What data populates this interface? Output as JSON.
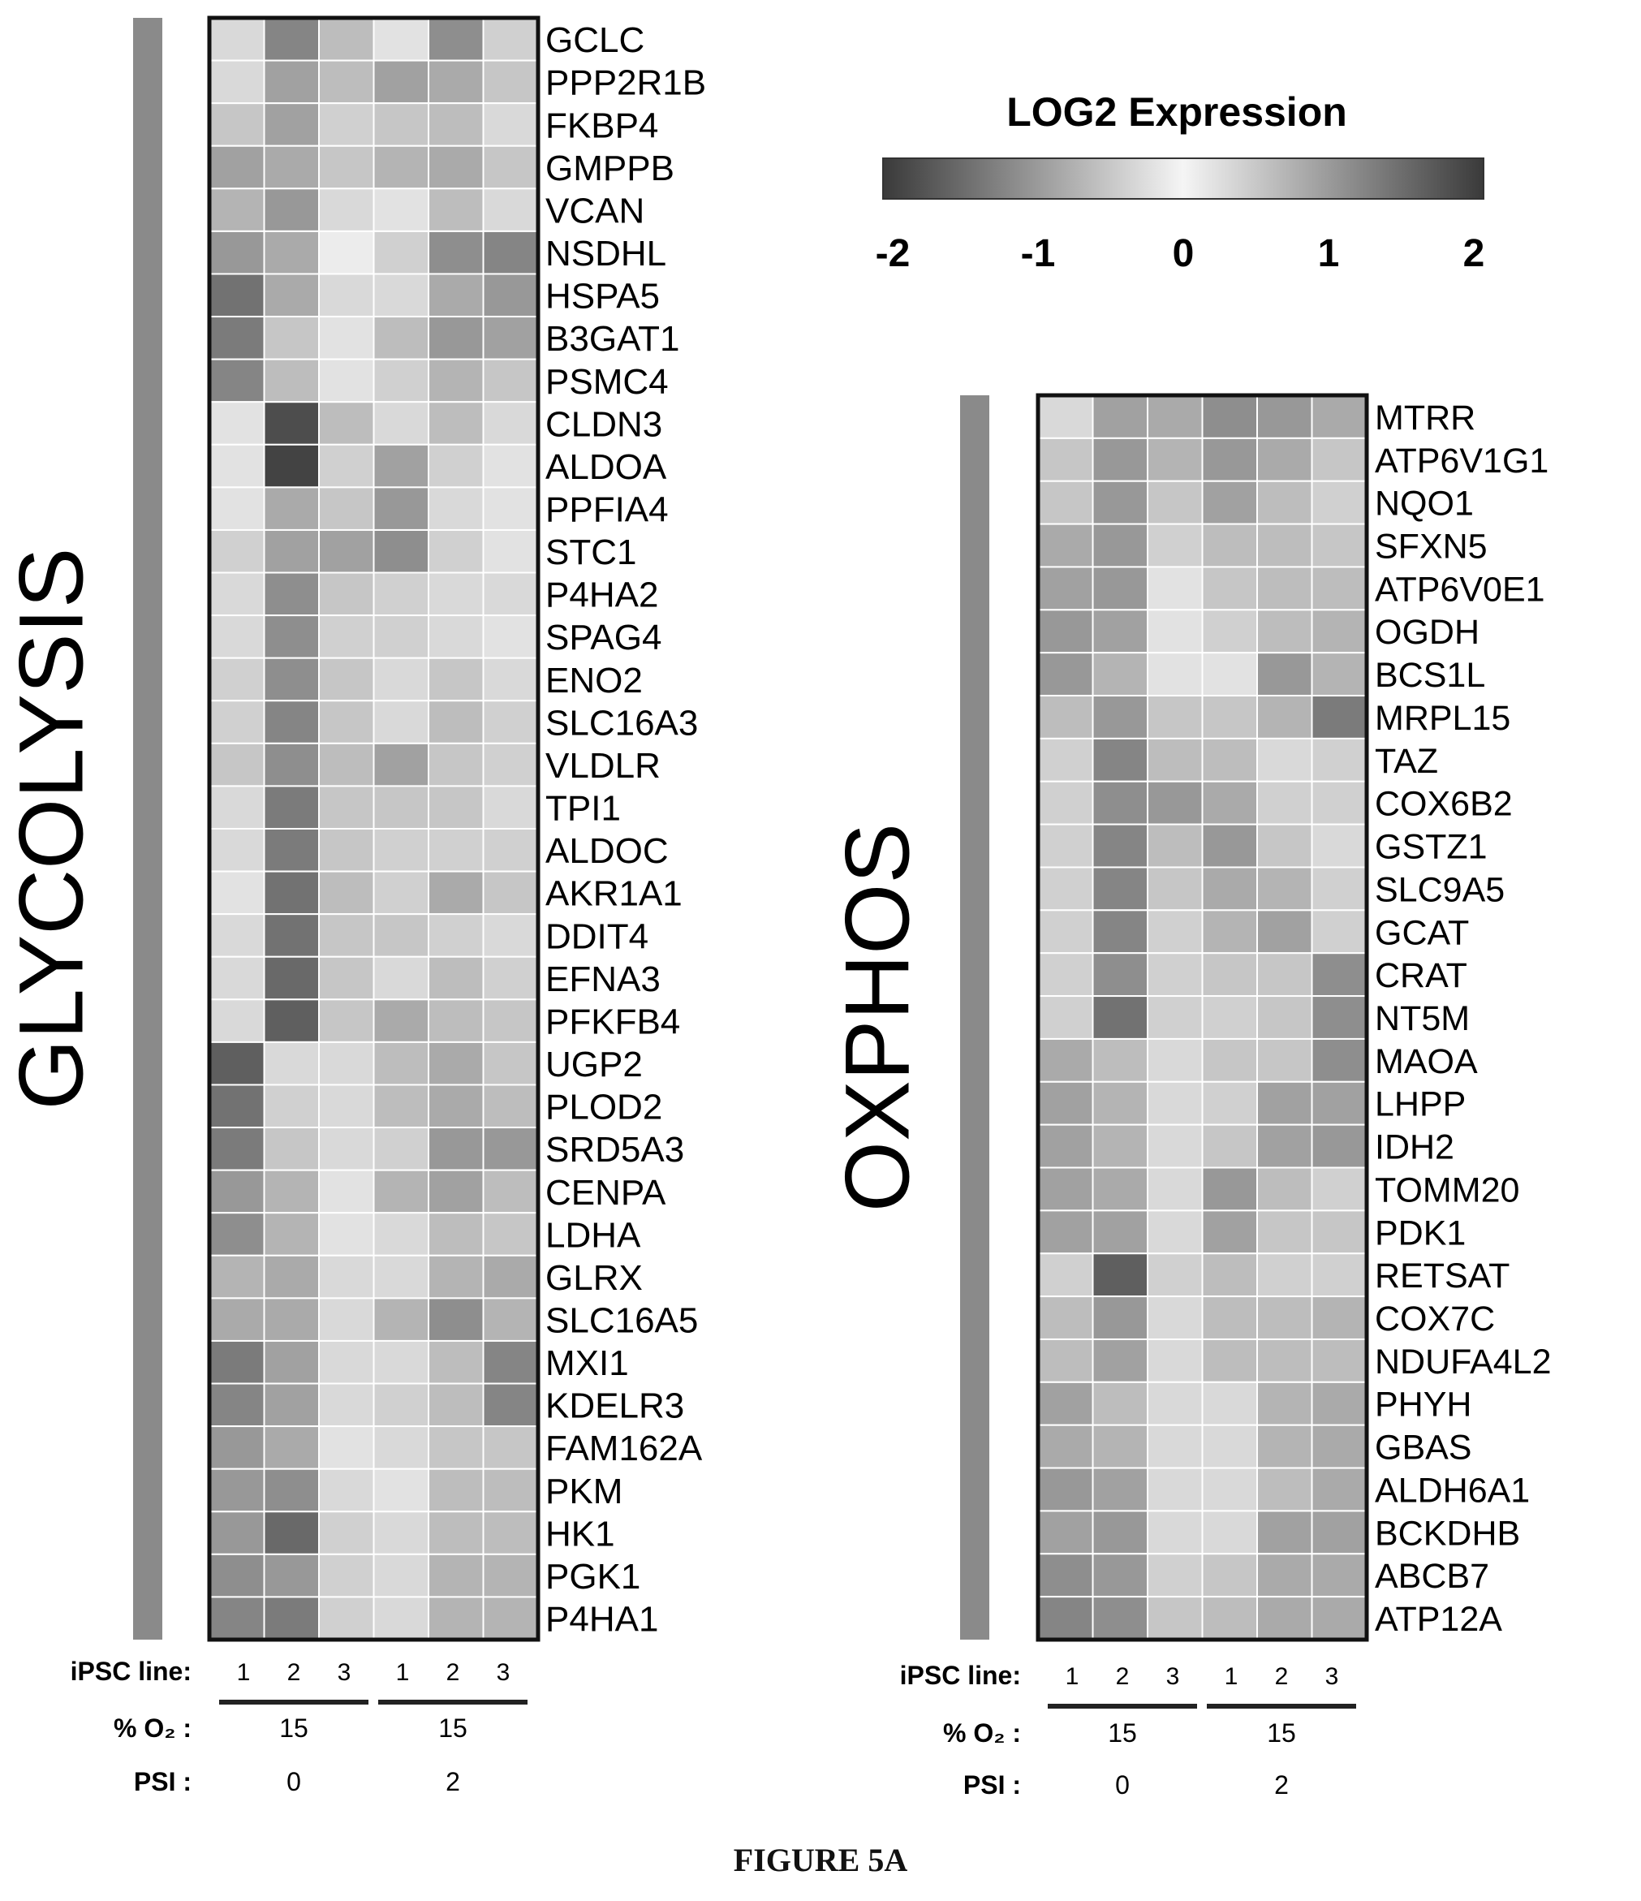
{
  "caption": "FIGURE 5A",
  "colors": {
    "low": "#3a3a3a",
    "mid": "#f5f5f5",
    "high": "#3a3a3a",
    "frame": "#111111",
    "side_bar": "#8a8a8a"
  },
  "legend": {
    "title": "LOG2 Expression",
    "min": -2,
    "max": 2,
    "ticks": [
      "-2",
      "-1",
      "0",
      "1",
      "2"
    ]
  },
  "footer_labels": {
    "ipsc_line": "iPSC line:",
    "o2": "% O₂ :",
    "psi": "PSI :"
  },
  "chart_data": [
    {
      "type": "heatmap",
      "title": "GLYCOLYSIS",
      "columns": [
        "1",
        "2",
        "3",
        "1",
        "2",
        "3"
      ],
      "groups": [
        {
          "o2": "15",
          "psi": "0"
        },
        {
          "o2": "15",
          "psi": "2"
        }
      ],
      "rows": [
        "GCLC",
        "PPP2R1B",
        "FKBP4",
        "GMPPB",
        "VCAN",
        "NSDHL",
        "HSPA5",
        "B3GAT1",
        "PSMC4",
        "CLDN3",
        "ALDOA",
        "PPFIA4",
        "STC1",
        "P4HA2",
        "SPAG4",
        "ENO2",
        "SLC16A3",
        "VLDLR",
        "TPI1",
        "ALDOC",
        "AKR1A1",
        "DDIT4",
        "EFNA3",
        "PFKFB4",
        "UGP2",
        "PLOD2",
        "SRD5A3",
        "CENPA",
        "LDHA",
        "GLRX",
        "SLC16A5",
        "MXI1",
        "KDELR3",
        "FAM162A",
        "PKM",
        "HK1",
        "PGK1",
        "P4HA1"
      ],
      "values": [
        [
          -0.3,
          1.2,
          0.6,
          0.2,
          1.1,
          0.4
        ],
        [
          0.3,
          0.9,
          0.6,
          0.9,
          0.8,
          0.5
        ],
        [
          0.5,
          0.9,
          0.4,
          0.5,
          0.6,
          0.3
        ],
        [
          0.9,
          0.8,
          0.5,
          0.7,
          0.8,
          0.5
        ],
        [
          0.7,
          1.0,
          0.3,
          -0.2,
          0.6,
          0.3
        ],
        [
          1.0,
          0.8,
          0.1,
          -0.4,
          1.1,
          1.2
        ],
        [
          1.4,
          0.8,
          0.3,
          -0.3,
          0.8,
          1.0
        ],
        [
          1.3,
          0.5,
          0.2,
          0.6,
          1.0,
          0.9
        ],
        [
          1.2,
          0.6,
          0.2,
          0.4,
          0.7,
          0.5
        ],
        [
          0.2,
          1.8,
          0.6,
          0.3,
          0.6,
          0.3
        ],
        [
          0.2,
          1.9,
          0.4,
          0.9,
          0.4,
          0.2
        ],
        [
          0.2,
          0.8,
          0.5,
          1.0,
          0.3,
          0.2
        ],
        [
          0.4,
          0.9,
          0.9,
          1.1,
          0.4,
          0.2
        ],
        [
          0.3,
          1.1,
          0.5,
          0.4,
          0.3,
          0.3
        ],
        [
          0.3,
          1.1,
          0.4,
          0.4,
          0.3,
          0.2
        ],
        [
          0.4,
          1.1,
          0.5,
          0.3,
          0.5,
          0.3
        ],
        [
          0.4,
          1.2,
          0.5,
          0.3,
          0.6,
          0.4
        ],
        [
          0.5,
          1.1,
          0.6,
          0.9,
          0.5,
          0.4
        ],
        [
          0.3,
          1.3,
          0.5,
          0.5,
          0.5,
          0.3
        ],
        [
          0.3,
          1.3,
          0.5,
          0.4,
          0.4,
          0.4
        ],
        [
          0.2,
          1.4,
          0.6,
          0.4,
          0.8,
          0.5
        ],
        [
          0.3,
          1.4,
          0.5,
          0.5,
          0.4,
          0.3
        ],
        [
          0.3,
          1.5,
          0.5,
          0.3,
          0.6,
          0.4
        ],
        [
          0.3,
          1.6,
          0.5,
          0.8,
          0.6,
          0.5
        ],
        [
          1.6,
          0.3,
          0.3,
          0.6,
          0.8,
          0.5
        ],
        [
          1.4,
          0.4,
          0.3,
          0.6,
          0.8,
          0.6
        ],
        [
          1.3,
          0.5,
          0.3,
          0.4,
          1.0,
          1.0
        ],
        [
          1.0,
          0.7,
          0.2,
          0.7,
          0.9,
          0.6
        ],
        [
          1.1,
          0.7,
          0.2,
          0.3,
          0.6,
          0.5
        ],
        [
          0.7,
          0.8,
          0.3,
          0.3,
          0.7,
          0.8
        ],
        [
          0.8,
          0.8,
          0.3,
          0.7,
          1.1,
          0.7
        ],
        [
          1.3,
          0.9,
          0.3,
          0.3,
          0.6,
          1.2
        ],
        [
          1.2,
          0.9,
          0.3,
          0.4,
          0.6,
          1.2
        ],
        [
          1.0,
          0.8,
          0.2,
          0.3,
          0.5,
          0.5
        ],
        [
          1.0,
          1.1,
          0.3,
          0.2,
          0.6,
          0.6
        ],
        [
          1.0,
          1.5,
          0.4,
          0.3,
          0.6,
          0.6
        ],
        [
          1.1,
          1.0,
          0.4,
          0.3,
          0.7,
          0.7
        ],
        [
          1.2,
          1.3,
          0.4,
          0.3,
          0.7,
          0.7
        ]
      ]
    },
    {
      "type": "heatmap",
      "title": "OXPHOS",
      "columns": [
        "1",
        "2",
        "3",
        "1",
        "2",
        "3"
      ],
      "groups": [
        {
          "o2": "15",
          "psi": "0"
        },
        {
          "o2": "15",
          "psi": "2"
        }
      ],
      "rows": [
        "MTRR",
        "ATP6V1G1",
        "NQO1",
        "SFXN5",
        "ATP6V0E1",
        "OGDH",
        "BCS1L",
        "MRPL15",
        "TAZ",
        "COX6B2",
        "GSTZ1",
        "SLC9A5",
        "GCAT",
        "CRAT",
        "NT5M",
        "MAOA",
        "LHPP",
        "IDH2",
        "TOMM20",
        "PDK1",
        "RETSAT",
        "COX7C",
        "NDUFA4L2",
        "PHYH",
        "GBAS",
        "ALDH6A1",
        "BCKDHB",
        "ABCB7",
        "ATP12A"
      ],
      "values": [
        [
          0.3,
          0.9,
          0.8,
          1.1,
          1.0,
          0.8
        ],
        [
          0.5,
          1.0,
          0.7,
          1.0,
          0.8,
          0.5
        ],
        [
          0.5,
          1.0,
          0.5,
          0.9,
          0.6,
          0.4
        ],
        [
          0.8,
          1.0,
          0.4,
          0.6,
          0.6,
          0.5
        ],
        [
          0.9,
          1.0,
          0.2,
          0.5,
          0.6,
          0.6
        ],
        [
          1.0,
          0.9,
          0.2,
          0.4,
          0.6,
          0.7
        ],
        [
          1.0,
          0.7,
          0.2,
          0.2,
          1.0,
          0.7
        ],
        [
          0.6,
          1.0,
          0.5,
          0.5,
          0.7,
          1.3
        ],
        [
          0.4,
          1.2,
          0.6,
          0.6,
          0.3,
          0.4
        ],
        [
          0.4,
          1.1,
          1.0,
          0.8,
          0.4,
          0.4
        ],
        [
          0.4,
          1.2,
          0.6,
          1.0,
          0.5,
          0.3
        ],
        [
          0.4,
          1.2,
          0.5,
          0.8,
          0.7,
          0.4
        ],
        [
          0.4,
          1.2,
          0.4,
          0.7,
          0.9,
          0.4
        ],
        [
          0.4,
          1.1,
          0.4,
          0.5,
          0.5,
          1.1
        ],
        [
          0.4,
          1.4,
          0.4,
          0.4,
          0.5,
          1.1
        ],
        [
          0.8,
          0.6,
          0.3,
          0.5,
          0.5,
          1.1
        ],
        [
          0.9,
          0.7,
          0.3,
          0.4,
          0.9,
          0.9
        ],
        [
          0.9,
          0.7,
          0.3,
          0.5,
          0.9,
          1.0
        ],
        [
          0.9,
          0.8,
          0.3,
          1.0,
          0.6,
          0.4
        ],
        [
          0.9,
          0.9,
          0.3,
          0.9,
          0.5,
          0.5
        ],
        [
          0.4,
          1.6,
          0.4,
          0.6,
          0.4,
          0.4
        ],
        [
          0.6,
          1.0,
          0.3,
          0.6,
          0.6,
          0.7
        ],
        [
          0.6,
          0.9,
          0.3,
          0.6,
          0.6,
          0.6
        ],
        [
          0.9,
          0.6,
          0.3,
          0.3,
          0.7,
          0.8
        ],
        [
          0.8,
          0.7,
          0.3,
          0.3,
          0.7,
          0.8
        ],
        [
          1.0,
          0.9,
          0.3,
          0.3,
          0.6,
          0.8
        ],
        [
          0.9,
          1.0,
          0.3,
          0.3,
          0.9,
          0.9
        ],
        [
          1.1,
          1.0,
          0.4,
          0.5,
          0.8,
          0.8
        ],
        [
          1.2,
          1.1,
          0.5,
          0.6,
          0.8,
          0.8
        ]
      ]
    }
  ]
}
